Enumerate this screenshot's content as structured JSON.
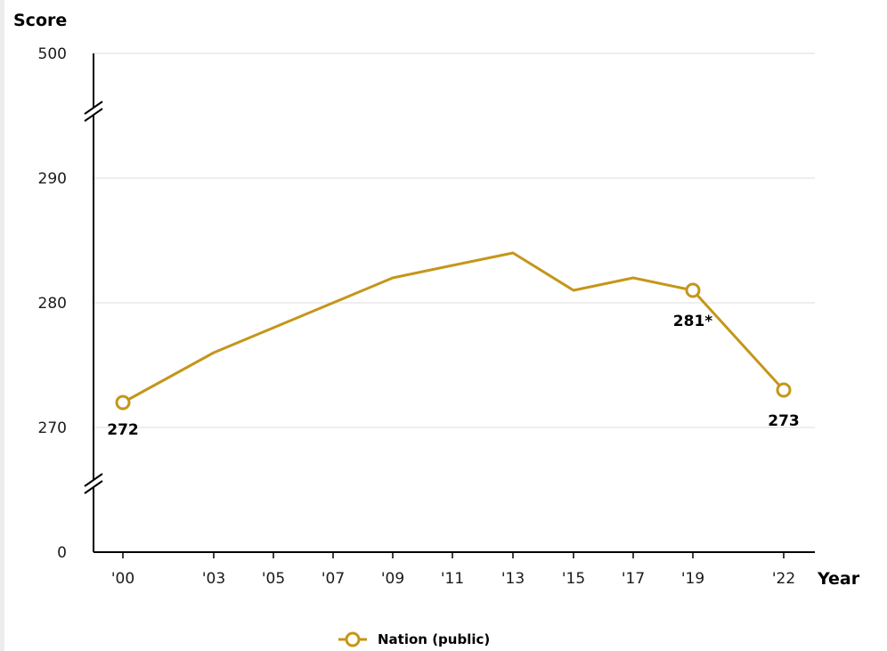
{
  "chart_data": {
    "type": "line",
    "ylabel": "Score",
    "xlabel": "Year",
    "y_ticks": [
      "500",
      "290",
      "280",
      "270",
      "0"
    ],
    "x": [
      "'00",
      "'03",
      "'05",
      "'07",
      "'09",
      "'11",
      "'13",
      "'15",
      "'17",
      "'19",
      "'22"
    ],
    "series": [
      {
        "name": "Nation (public)",
        "values": [
          272,
          276,
          278,
          280,
          282,
          283,
          284,
          281,
          282,
          281,
          273
        ],
        "color": "#c4961a"
      }
    ],
    "data_labels": [
      {
        "x": "'00",
        "text": "272"
      },
      {
        "x": "'19",
        "text": "281*"
      },
      {
        "x": "'22",
        "text": "273"
      }
    ],
    "marked_points": [
      "'00",
      "'19",
      "'22"
    ],
    "ylim_visible": [
      265,
      295
    ],
    "axis_break": true,
    "grid": true,
    "legend_position": "bottom-center"
  }
}
